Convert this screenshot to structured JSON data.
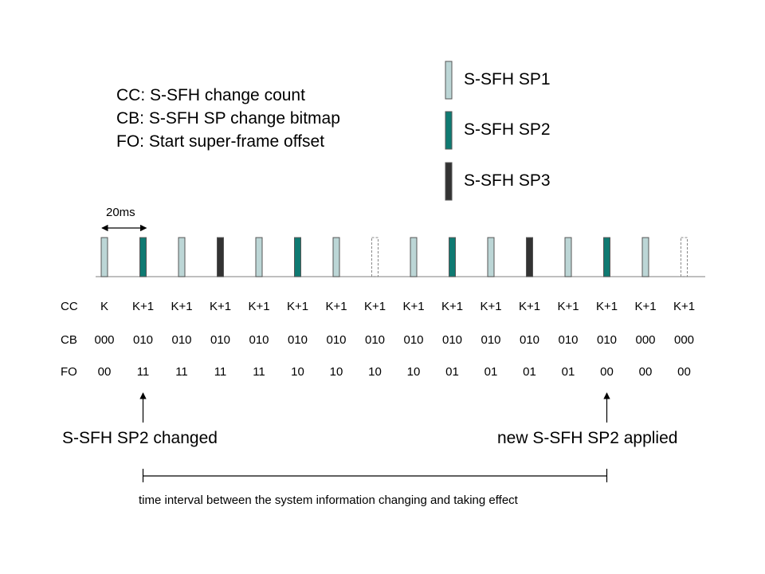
{
  "definitions": [
    "CC: S-SFH change count",
    "CB: S-SFH SP change bitmap",
    "FO: Start super-frame offset"
  ],
  "legend": [
    {
      "label": "S-SFH SP1",
      "color": "#bcd6d6",
      "style": "solid"
    },
    {
      "label": "S-SFH SP2",
      "color": "#0f7a72",
      "style": "solid"
    },
    {
      "label": "S-SFH SP3",
      "color": "#333333",
      "style": "solid"
    }
  ],
  "period_label": "20ms",
  "frames": [
    {
      "type": "SP1"
    },
    {
      "type": "SP2"
    },
    {
      "type": "SP1"
    },
    {
      "type": "SP3"
    },
    {
      "type": "SP1"
    },
    {
      "type": "SP2"
    },
    {
      "type": "SP1"
    },
    {
      "type": "empty"
    },
    {
      "type": "SP1"
    },
    {
      "type": "SP2"
    },
    {
      "type": "SP1"
    },
    {
      "type": "SP3"
    },
    {
      "type": "SP1"
    },
    {
      "type": "SP2"
    },
    {
      "type": "SP1"
    },
    {
      "type": "empty"
    }
  ],
  "rows": [
    {
      "label": "CC",
      "values": [
        "K",
        "K+1",
        "K+1",
        "K+1",
        "K+1",
        "K+1",
        "K+1",
        "K+1",
        "K+1",
        "K+1",
        "K+1",
        "K+1",
        "K+1",
        "K+1",
        "K+1",
        "K+1"
      ]
    },
    {
      "label": "CB",
      "values": [
        "000",
        "010",
        "010",
        "010",
        "010",
        "010",
        "010",
        "010",
        "010",
        "010",
        "010",
        "010",
        "010",
        "010",
        "000",
        "000"
      ]
    },
    {
      "label": "FO",
      "values": [
        "00",
        "11",
        "11",
        "11",
        "11",
        "10",
        "10",
        "10",
        "10",
        "01",
        "01",
        "01",
        "01",
        "00",
        "00",
        "00"
      ]
    }
  ],
  "annotations": {
    "changed": "S-SFH SP2 changed",
    "applied": "new S-SFH SP2 applied",
    "interval": "time interval between the system information changing and taking effect"
  }
}
